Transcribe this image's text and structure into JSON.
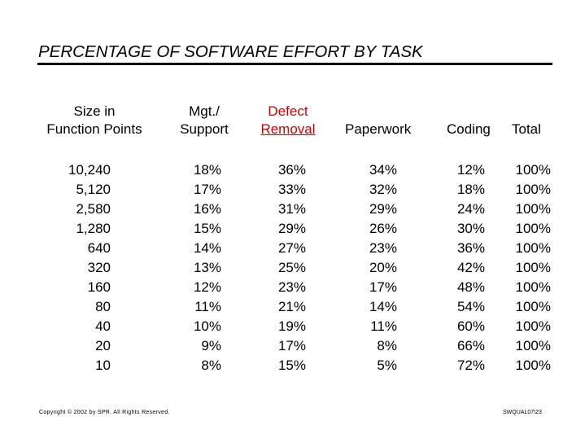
{
  "title": "PERCENTAGE OF SOFTWARE EFFORT BY TASK",
  "headers": {
    "size_line1": "Size in",
    "size_line2": "Function Points",
    "mgt_line1": "Mgt./",
    "mgt_line2": "Support",
    "defect_line1": "Defect",
    "defect_line2": "Removal",
    "paperwork": "Paperwork",
    "coding": "Coding",
    "total": "Total"
  },
  "columns": {
    "size": [
      "10,240",
      "5,120",
      "2,580",
      "1,280",
      "640",
      "320",
      "160",
      "80",
      "40",
      "20",
      "10"
    ],
    "mgt_support": [
      "18%",
      "17%",
      "16%",
      "15%",
      "14%",
      "13%",
      "12%",
      "11%",
      "10%",
      "9%",
      "8%"
    ],
    "defect_removal": [
      "36%",
      "33%",
      "31%",
      "29%",
      "27%",
      "25%",
      "23%",
      "21%",
      "19%",
      "17%",
      "15%"
    ],
    "paperwork": [
      "34%",
      "32%",
      "29%",
      "26%",
      "23%",
      "20%",
      "17%",
      "14%",
      "11%",
      "8%",
      "5%"
    ],
    "coding": [
      "12%",
      "18%",
      "24%",
      "30%",
      "36%",
      "42%",
      "48%",
      "54%",
      "60%",
      "66%",
      "72%"
    ],
    "total": [
      "100%",
      "100%",
      "100%",
      "100%",
      "100%",
      "100%",
      "100%",
      "100%",
      "100%",
      "100%",
      "100%"
    ]
  },
  "footer": {
    "copyright": "Copyright © 2002 by SPR.  All Rights Reserved.",
    "code": "SWQUAL07\\23"
  },
  "colors": {
    "defect_header": "#cc0000",
    "rule": "#000000"
  }
}
